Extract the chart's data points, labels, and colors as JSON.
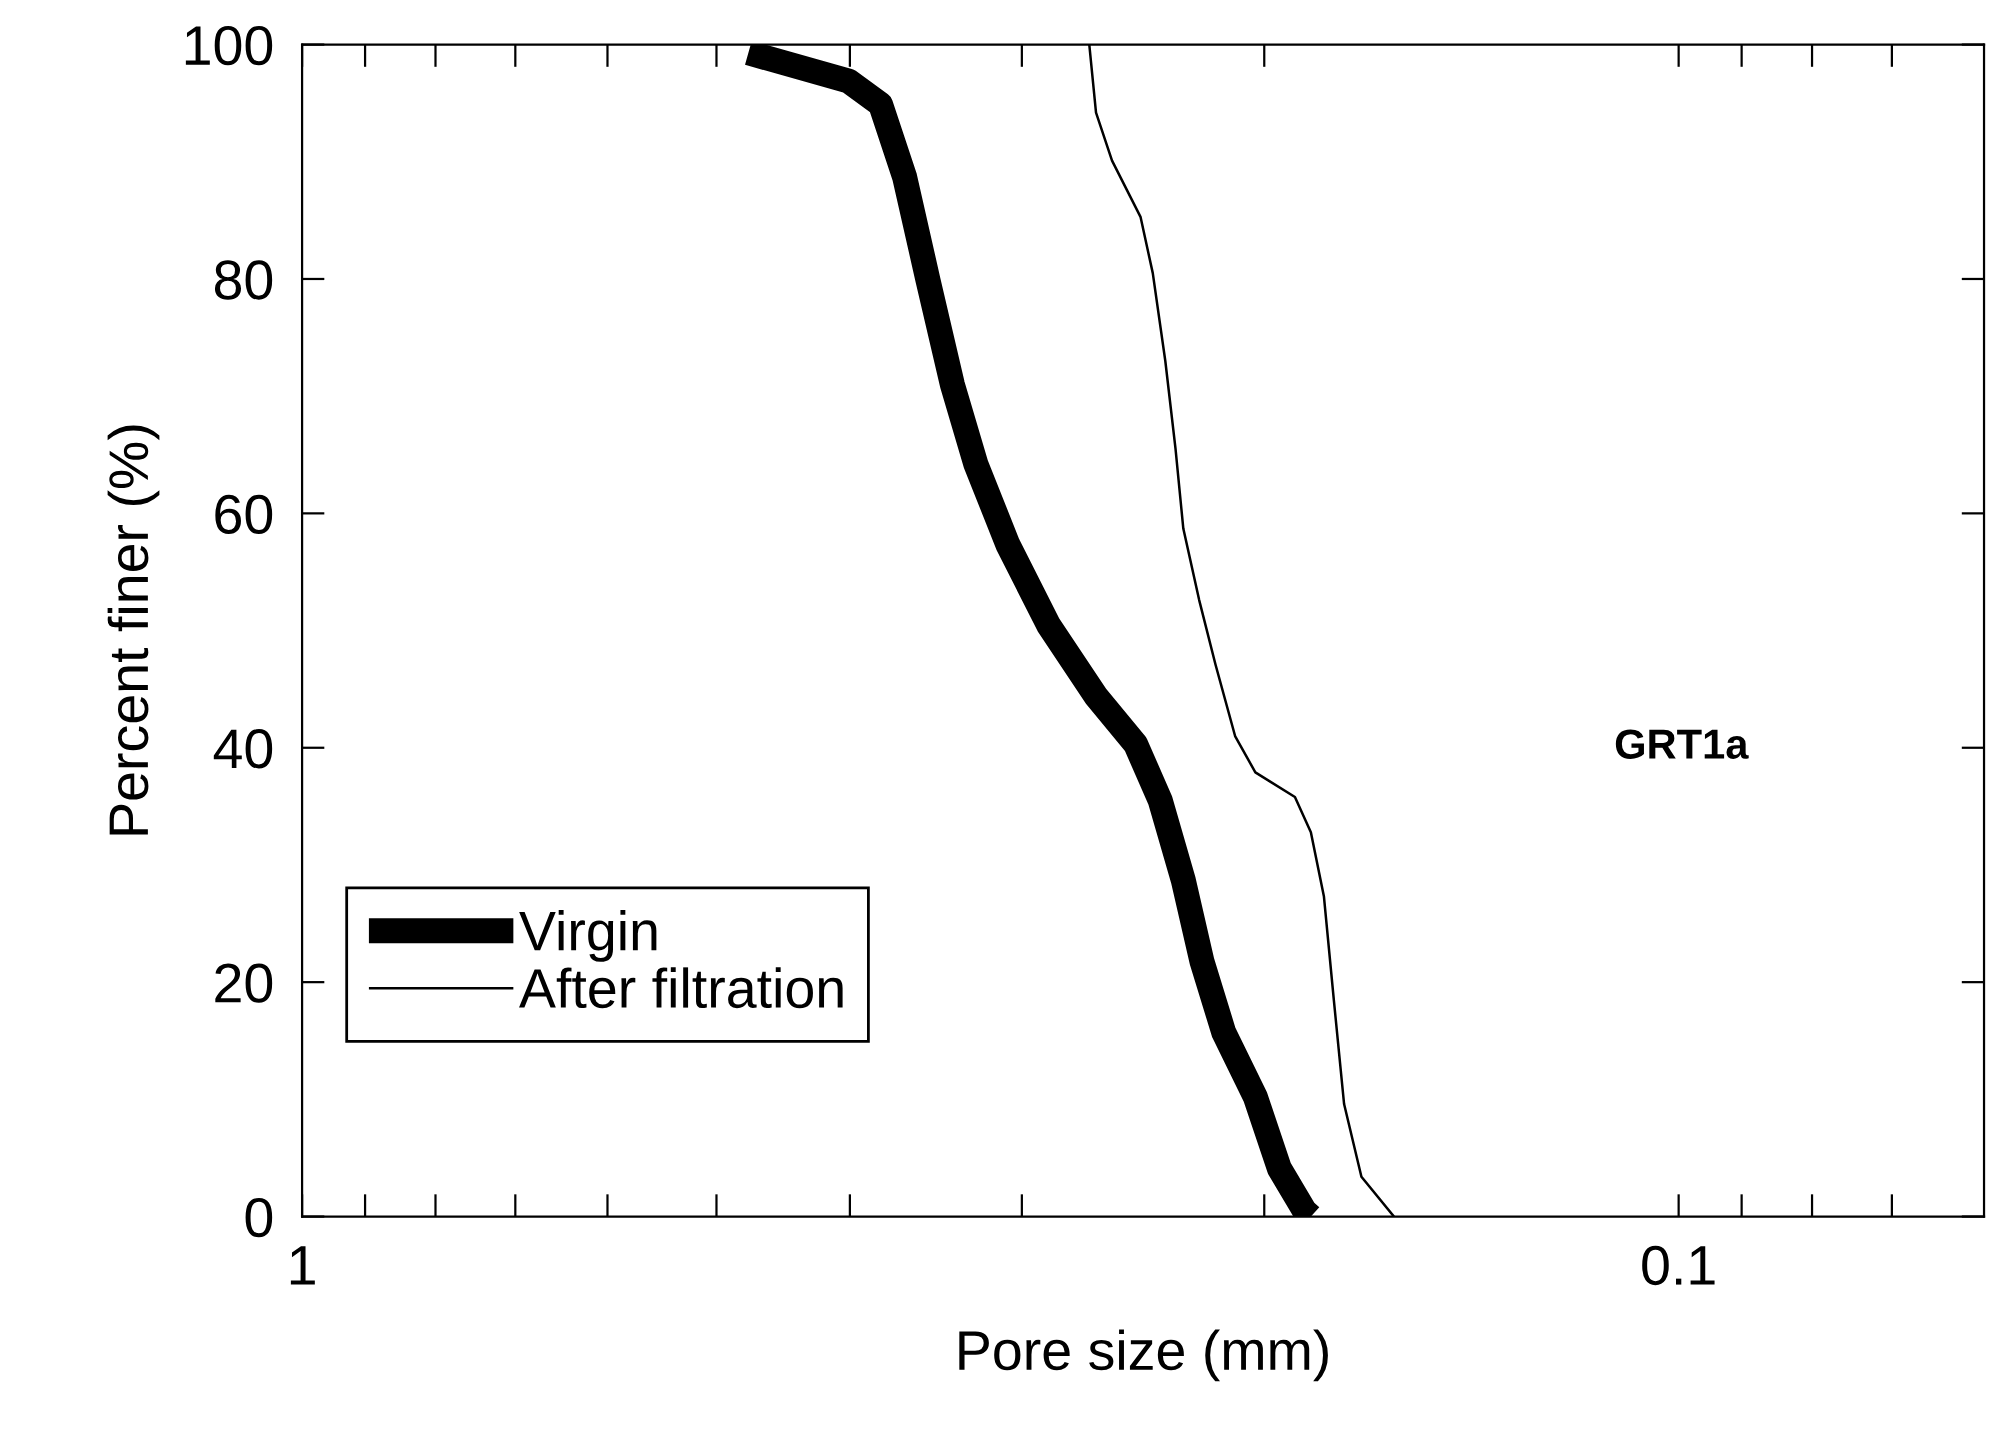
{
  "chart_data": {
    "type": "line",
    "xlabel": "Pore size (mm)",
    "ylabel": "Percent finer (%)",
    "log": "x",
    "xlim": [
      1,
      0.06
    ],
    "ylim": [
      0,
      100
    ],
    "xticks": [
      {
        "value": 1,
        "label": "1"
      },
      {
        "value": 0.9,
        "label": null
      },
      {
        "value": 0.8,
        "label": null
      },
      {
        "value": 0.7,
        "label": null
      },
      {
        "value": 0.6,
        "label": null
      },
      {
        "value": 0.5,
        "label": null
      },
      {
        "value": 0.4,
        "label": null
      },
      {
        "value": 0.3,
        "label": null
      },
      {
        "value": 0.2,
        "label": null
      },
      {
        "value": 0.1,
        "label": "0.1"
      },
      {
        "value": 0.09,
        "label": null
      },
      {
        "value": 0.08,
        "label": null
      },
      {
        "value": 0.07,
        "label": null
      }
    ],
    "yticks": [
      0,
      20,
      40,
      60,
      80,
      100
    ],
    "legend": "bottom left",
    "grid": false,
    "marker": "none",
    "annotations": [
      "GRT1a"
    ],
    "series": [
      {
        "name": "Virgin",
        "color": "#000000",
        "x": [
          0.474,
          0.401,
          0.38,
          0.365,
          0.351,
          0.337,
          0.324,
          0.307,
          0.287,
          0.265,
          0.248,
          0.238,
          0.229,
          0.222,
          0.214,
          0.203,
          0.195,
          0.187,
          0.185
        ],
        "values": [
          99.3,
          96.9,
          94.9,
          88.7,
          79.9,
          71.0,
          64.2,
          57.3,
          50.5,
          44.4,
          40.3,
          35.5,
          28.7,
          21.8,
          15.7,
          10.2,
          4.1,
          0.5,
          0
        ]
      },
      {
        "name": "After filtration",
        "color": "#000000",
        "x": [
          0.268,
          0.265,
          0.258,
          0.246,
          0.241,
          0.236,
          0.232,
          0.229,
          0.223,
          0.217,
          0.21,
          0.203,
          0.19,
          0.185,
          0.181,
          0.178,
          0.175,
          0.17,
          0.161
        ],
        "values": [
          100,
          94.2,
          90.1,
          85.3,
          80.5,
          73.0,
          65.5,
          58.7,
          52.6,
          47.1,
          41.0,
          37.9,
          35.8,
          32.8,
          27.3,
          18.4,
          9.6,
          3.4,
          0
        ]
      }
    ]
  }
}
